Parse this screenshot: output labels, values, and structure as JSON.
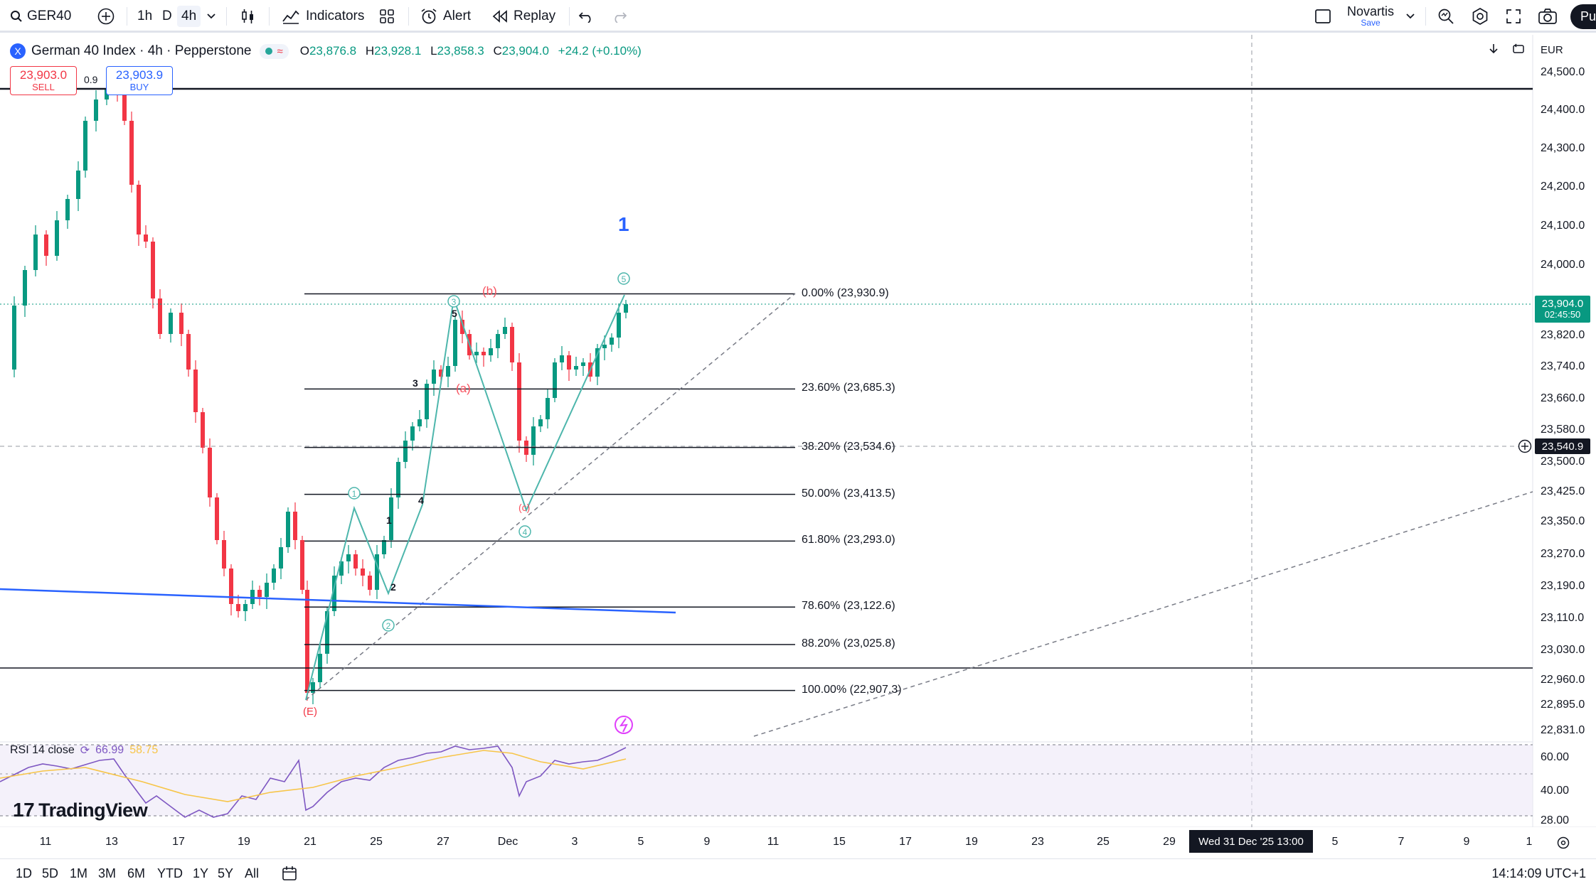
{
  "toolbar": {
    "symbol": "GER40",
    "timeframes": [
      "1h",
      "D",
      "4h"
    ],
    "active_timeframe": "4h",
    "indicators_label": "Indicators",
    "alert_label": "Alert",
    "replay_label": "Replay",
    "layout_name": "Novartis",
    "layout_save": "Save",
    "publish_label": "Pu"
  },
  "legend": {
    "title": "German 40 Index · 4h · Pepperstone",
    "open_label": "O",
    "open": "23,876.8",
    "high_label": "H",
    "high": "23,928.1",
    "low_label": "L",
    "low": "23,858.3",
    "close_label": "C",
    "close": "23,904.0",
    "change": "+24.2 (+0.10%)"
  },
  "trade": {
    "sell_price": "23,903.0",
    "sell_label": "SELL",
    "buy_price": "23,903.9",
    "buy_label": "BUY",
    "spread": "0.9"
  },
  "price_axis": {
    "currency": "EUR",
    "labels": [
      "24,500.0",
      "24,400.0",
      "24,300.0",
      "24,200.0",
      "24,100.0",
      "24,000.0",
      "23,820.0",
      "23,740.0",
      "23,660.0",
      "23,580.0",
      "23,500.0",
      "23,425.0",
      "23,350.0",
      "23,270.0",
      "23,190.0",
      "23,110.0",
      "23,030.0",
      "22,960.0",
      "22,895.0",
      "22,831.0"
    ],
    "current_price": "23,904.0",
    "countdown": "02:45:50",
    "crosshair_price": "23,540.9"
  },
  "fib": {
    "levels": [
      {
        "label": "0.00% (23,930.9)",
        "price": 23930.9
      },
      {
        "label": "23.60% (23,685.3)",
        "price": 23685.3
      },
      {
        "label": "38.20% (23,534.6)",
        "price": 23534.6
      },
      {
        "label": "50.00% (23,413.5)",
        "price": 23413.5
      },
      {
        "label": "61.80% (23,293.0)",
        "price": 23293.0
      },
      {
        "label": "78.60% (23,122.6)",
        "price": 23122.6
      },
      {
        "label": "88.20% (23,025.8)",
        "price": 23025.8
      },
      {
        "label": "100.00% (22,907.3)",
        "price": 22907.3
      }
    ]
  },
  "waves": {
    "degree_label": "1",
    "impulse_circled": [
      "1",
      "2",
      "3",
      "4",
      "5"
    ],
    "sub_numbers": [
      "1",
      "2",
      "3",
      "4",
      "5"
    ],
    "abc": [
      "(a)",
      "(b)",
      "(c)"
    ],
    "e_label": "(E)"
  },
  "rsi": {
    "label": "RSI",
    "period": "14",
    "source": "close",
    "value": "66.99",
    "ma_value": "58.75",
    "axis_labels": [
      "60.00",
      "40.00",
      "28.00"
    ]
  },
  "time_axis": {
    "labels": [
      "11",
      "13",
      "17",
      "19",
      "21",
      "25",
      "27",
      "Dec",
      "3",
      "5",
      "9",
      "11",
      "15",
      "17",
      "19",
      "23",
      "25",
      "29",
      "5",
      "7",
      "9",
      "1"
    ],
    "crosshair_date": "Wed 31 Dec '25   13:00"
  },
  "bottom": {
    "ranges": [
      "1D",
      "5D",
      "1M",
      "3M",
      "6M",
      "YTD",
      "1Y",
      "5Y",
      "All"
    ],
    "clock": "14:14:09 UTC+1"
  },
  "brand": {
    "logo_text": "TradingView"
  },
  "colors": {
    "up": "#089981",
    "down": "#f23645",
    "fib": "#131722",
    "trend": "#2962ff",
    "wave": "#4db6ac",
    "rsi": "#7e57c2",
    "rsi_ma": "#f7c548"
  }
}
